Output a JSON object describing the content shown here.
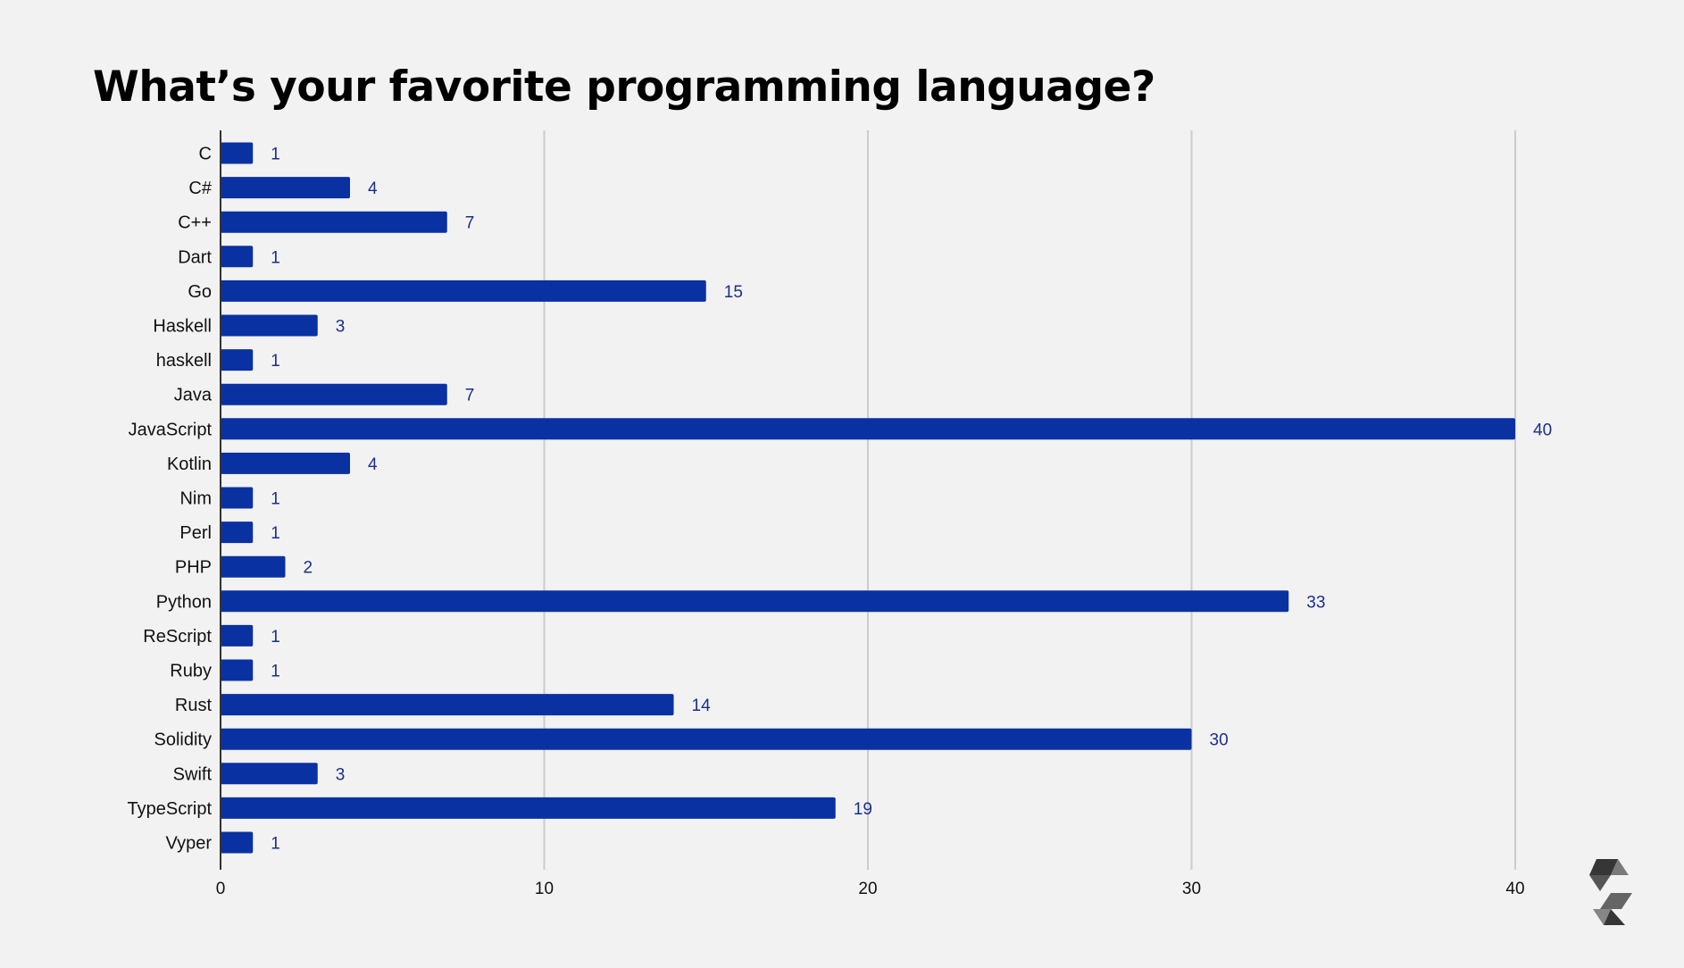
{
  "title": "What’s your favorite programming language?",
  "colors": {
    "background": "#f2f2f3",
    "bar": "#0a31a2",
    "value_label": "#1a2f8a",
    "grid": "#cccccc",
    "axis": "#333333",
    "text": "#111111"
  },
  "logo": {
    "icon": "solidity-logo-icon"
  },
  "chart_data": {
    "type": "bar",
    "orientation": "horizontal",
    "title": "What’s your favorite programming language?",
    "xlabel": "",
    "ylabel": "",
    "xlim": [
      0,
      44
    ],
    "x_ticks": [
      0,
      10,
      20,
      30,
      40
    ],
    "grid": true,
    "legend": "none",
    "data_labels": true,
    "categories": [
      "C",
      "C#",
      "C++",
      "Dart",
      "Go",
      "Haskell",
      "haskell",
      "Java",
      "JavaScript",
      "Kotlin",
      "Nim",
      "Perl",
      "PHP",
      "Python",
      "ReScript",
      "Ruby",
      "Rust",
      "Solidity",
      "Swift",
      "TypeScript",
      "Vyper"
    ],
    "values": [
      1,
      4,
      7,
      1,
      15,
      3,
      1,
      7,
      40,
      4,
      1,
      1,
      2,
      33,
      1,
      1,
      14,
      30,
      3,
      19,
      1
    ]
  }
}
